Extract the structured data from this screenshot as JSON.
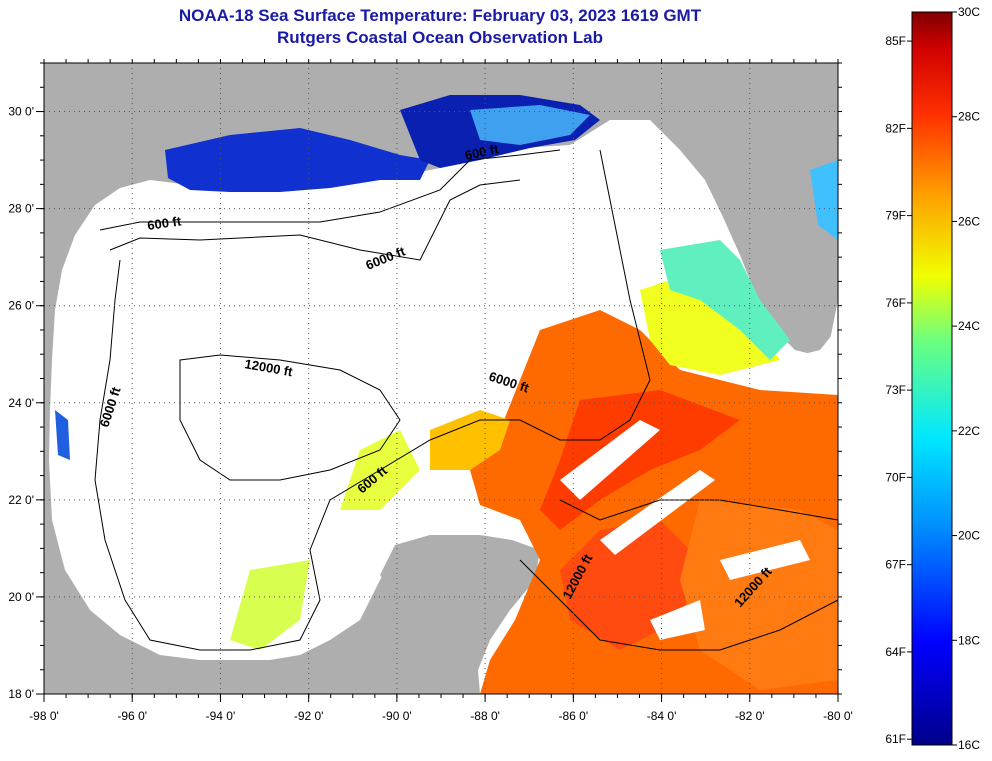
{
  "header": {
    "title": "NOAA-18 Sea Surface Temperature:  February 03, 2023 1619 GMT",
    "subtitle": "Rutgers Coastal Ocean Observation Lab"
  },
  "map": {
    "lon_range": [
      -98,
      -80
    ],
    "lat_range": [
      18,
      31
    ],
    "x_ticks": [
      "-98 0'",
      "-96 0'",
      "-94 0'",
      "-92 0'",
      "-90 0'",
      "-88 0'",
      "-86 0'",
      "-84 0'",
      "-82 0'",
      "-80 0'"
    ],
    "y_ticks": [
      "18 0'",
      "20 0'",
      "22 0'",
      "24 0'",
      "26 0'",
      "28 0'",
      "30 0'"
    ],
    "contour_labels": [
      "600 ft",
      "6000 ft",
      "12000 ft",
      "6000 ft",
      "600 ft",
      "6000 ft",
      "600 ft",
      "12000 ft",
      "12000 ft"
    ],
    "colors": {
      "land": "#aeaeae",
      "cloud": "#ffffff",
      "warm": "#ff6a00",
      "hot": "#ff3c00",
      "mid": "#ffc800",
      "cool": "#40e0c0",
      "cold": "#1030d0"
    }
  },
  "colorbar": {
    "celsius": [
      "30C",
      "28C",
      "26C",
      "24C",
      "22C",
      "20C",
      "18C",
      "16C"
    ],
    "fahrenheit": [
      "85F",
      "82F",
      "79F",
      "76F",
      "73F",
      "70F",
      "67F",
      "64F",
      "61F"
    ]
  }
}
